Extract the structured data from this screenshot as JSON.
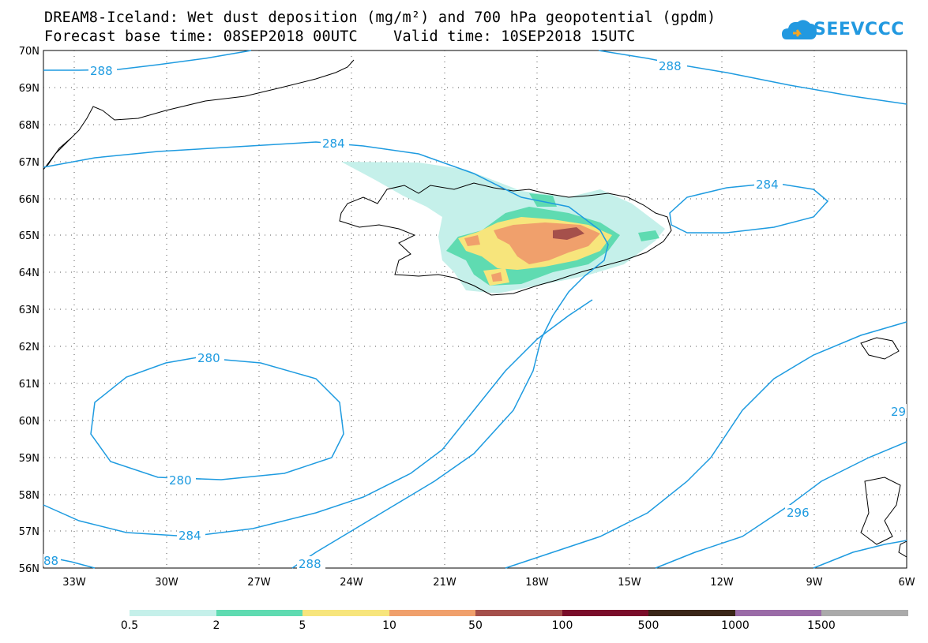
{
  "title": {
    "line1": "DREAM8-Iceland: Wet dust deposition (mg/m²) and 700 hPa geopotential (gpdm)",
    "line2": "Forecast base time: 08SEP2018 00UTC    Valid time: 10SEP2018 15UTC"
  },
  "logo": {
    "text": "SEEVCCC",
    "icon": "cloud-icon",
    "color": "#2299e0"
  },
  "map": {
    "lat_labels": [
      "70N",
      "69N",
      "68N",
      "67N",
      "66N",
      "65N",
      "64N",
      "63N",
      "62N",
      "61N",
      "60N",
      "59N",
      "58N",
      "57N",
      "56N"
    ],
    "lon_labels": [
      "33W",
      "30W",
      "27W",
      "24W",
      "21W",
      "18W",
      "15W",
      "12W",
      "9W",
      "6W"
    ],
    "contour_color": "#1e9be0",
    "contour_labels": [
      "288",
      "288",
      "284",
      "284",
      "280",
      "280",
      "284",
      "288",
      "296",
      "29",
      "88"
    ]
  },
  "legend": {
    "colors": [
      "#c5f0ea",
      "#5fdbb1",
      "#f7e57c",
      "#f0a06c",
      "#a5504b",
      "#7a0d2a",
      "#3a2618",
      "#9a6ba7",
      "#aaaaaa"
    ],
    "labels": [
      "0.5",
      "2",
      "5",
      "10",
      "50",
      "100",
      "500",
      "1000",
      "1500"
    ]
  }
}
